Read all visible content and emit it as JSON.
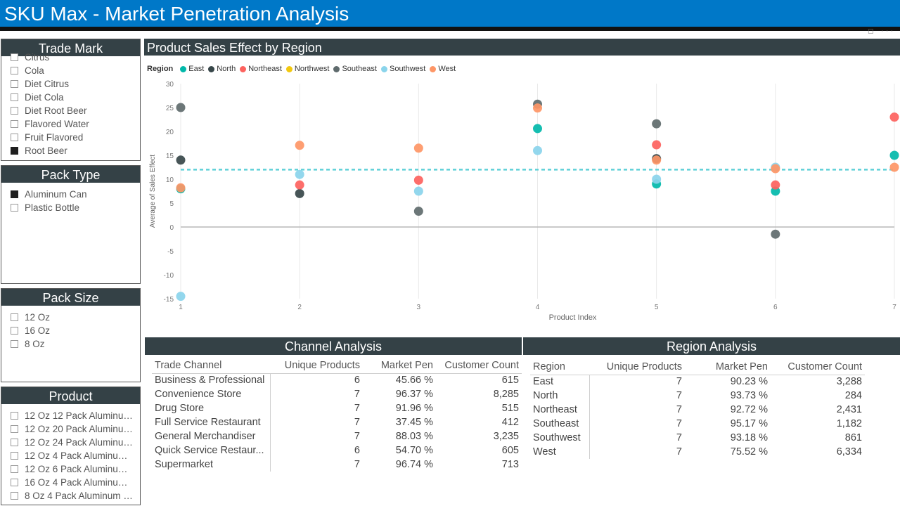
{
  "header": {
    "title": "SKU Max - Market Penetration Analysis"
  },
  "trade_mark": {
    "title": "Trade Mark",
    "items": [
      {
        "label": "Citrus",
        "checked": false
      },
      {
        "label": "Cola",
        "checked": false
      },
      {
        "label": "Diet Citrus",
        "checked": false
      },
      {
        "label": "Diet Cola",
        "checked": false
      },
      {
        "label": "Diet Root Beer",
        "checked": false
      },
      {
        "label": "Flavored Water",
        "checked": false
      },
      {
        "label": "Fruit Flavored",
        "checked": false
      },
      {
        "label": "Root Beer",
        "checked": true
      }
    ]
  },
  "pack_type": {
    "title": "Pack Type",
    "items": [
      {
        "label": "Aluminum Can",
        "checked": true
      },
      {
        "label": "Plastic Bottle",
        "checked": false
      }
    ]
  },
  "pack_size": {
    "title": "Pack Size",
    "items": [
      {
        "label": "12 Oz",
        "checked": false
      },
      {
        "label": "16 Oz",
        "checked": false
      },
      {
        "label": "8 Oz",
        "checked": false
      }
    ]
  },
  "product": {
    "title": "Product",
    "items": [
      {
        "label": "12 Oz 12 Pack Aluminum...",
        "checked": false
      },
      {
        "label": "12 Oz 20 Pack Aluminum...",
        "checked": false
      },
      {
        "label": "12 Oz 24 Pack Aluminum...",
        "checked": false
      },
      {
        "label": "12 Oz 4 Pack Aluminum ...",
        "checked": false
      },
      {
        "label": "12 Oz 6 Pack Aluminum ...",
        "checked": false
      },
      {
        "label": "16 Oz 4 Pack Aluminum ...",
        "checked": false
      },
      {
        "label": "8 Oz 4 Pack Aluminum C...",
        "checked": false
      }
    ]
  },
  "chart_data": {
    "type": "scatter",
    "title": "Product Sales Effect by Region",
    "legend_title": "Region",
    "xlabel": "Product Index",
    "ylabel": "Average of Sales Effect",
    "xlim": [
      1,
      7
    ],
    "ylim": [
      -15,
      30
    ],
    "x_ticks": [
      1,
      2,
      3,
      4,
      5,
      6,
      7
    ],
    "y_ticks": [
      30,
      25,
      20,
      15,
      10,
      5,
      0,
      -5,
      -10,
      -15
    ],
    "reference_line": 12,
    "colors": {
      "East": "#01b8aa",
      "North": "#374649",
      "Northeast": "#fd625e",
      "Northwest": "#f2c80f",
      "Southeast": "#5f6b6d",
      "Southwest": "#8ad4eb",
      "West": "#fe9666",
      "reference": "#5fd0d8"
    },
    "series": [
      {
        "name": "East",
        "points": [
          [
            1,
            8
          ],
          [
            4,
            20.6
          ],
          [
            5,
            9
          ],
          [
            6,
            7.5
          ],
          [
            7,
            15
          ]
        ]
      },
      {
        "name": "North",
        "points": [
          [
            1,
            14
          ],
          [
            2,
            7
          ],
          [
            5,
            14.3
          ]
        ]
      },
      {
        "name": "Northeast",
        "points": [
          [
            2,
            8.8
          ],
          [
            3,
            9.8
          ],
          [
            5,
            17.2
          ],
          [
            6,
            8.8
          ],
          [
            7,
            23
          ]
        ]
      },
      {
        "name": "Northwest",
        "points": []
      },
      {
        "name": "Southeast",
        "points": [
          [
            1,
            25
          ],
          [
            3,
            3.3
          ],
          [
            4,
            25.7
          ],
          [
            5,
            21.6
          ],
          [
            6,
            -1.5
          ]
        ]
      },
      {
        "name": "Southwest",
        "points": [
          [
            1,
            -14.5
          ],
          [
            2,
            11
          ],
          [
            3,
            7.5
          ],
          [
            4,
            16
          ],
          [
            5,
            10
          ],
          [
            6,
            12.5
          ]
        ]
      },
      {
        "name": "West",
        "points": [
          [
            1,
            8.2
          ],
          [
            2,
            17.1
          ],
          [
            3,
            16.5
          ],
          [
            4,
            24.9
          ],
          [
            5,
            14
          ],
          [
            6,
            12.2
          ],
          [
            7,
            12.5
          ]
        ]
      }
    ]
  },
  "channel_analysis": {
    "title": "Channel Analysis",
    "columns": [
      "Trade Channel",
      "Unique Products",
      "Market Pen",
      "Customer Count"
    ],
    "rows": [
      [
        "Business & Professional",
        "6",
        "45.66 %",
        "615"
      ],
      [
        "Convenience Store",
        "7",
        "96.37 %",
        "8,285"
      ],
      [
        "Drug Store",
        "7",
        "91.96 %",
        "515"
      ],
      [
        "Full Service Restaurant",
        "7",
        "37.45 %",
        "412"
      ],
      [
        "General Merchandiser",
        "7",
        "88.03 %",
        "3,235"
      ],
      [
        "Quick Service Restaur...",
        "6",
        "54.70 %",
        "605"
      ],
      [
        "Supermarket",
        "7",
        "96.74 %",
        "713"
      ]
    ]
  },
  "region_analysis": {
    "title": "Region Analysis",
    "columns": [
      "Region",
      "Unique Products",
      "Market Pen",
      "Customer Count"
    ],
    "rows": [
      [
        "East",
        "7",
        "90.23 %",
        "3,288"
      ],
      [
        "North",
        "7",
        "93.73 %",
        "284"
      ],
      [
        "Northeast",
        "7",
        "92.72 %",
        "2,431"
      ],
      [
        "Southeast",
        "7",
        "95.17 %",
        "1,182"
      ],
      [
        "Southwest",
        "7",
        "93.18 %",
        "861"
      ],
      [
        "West",
        "7",
        "75.52 %",
        "6,334"
      ]
    ]
  }
}
